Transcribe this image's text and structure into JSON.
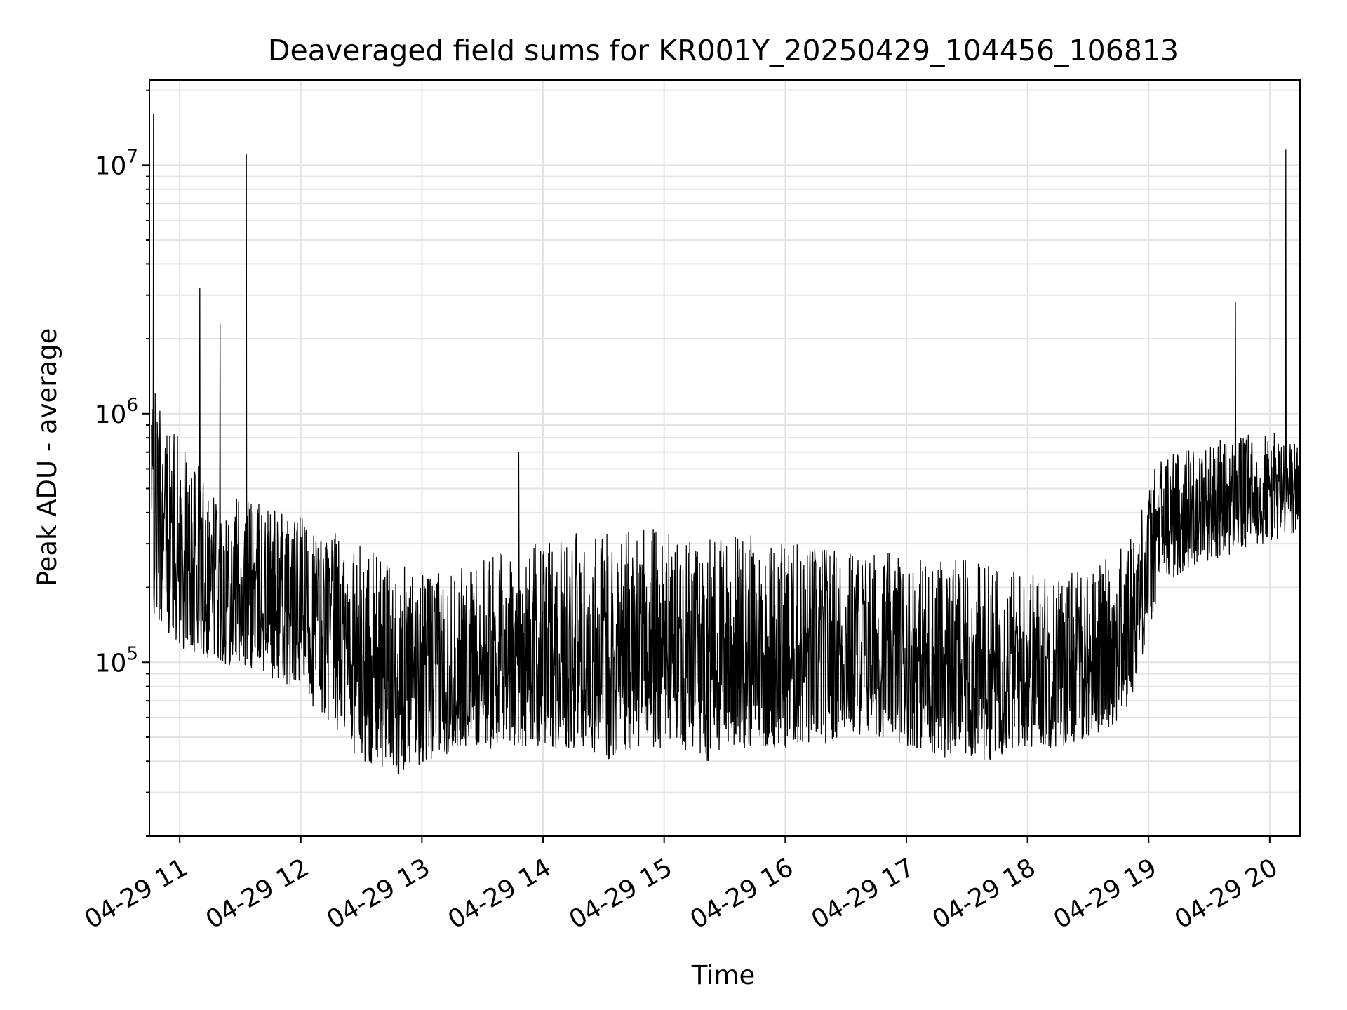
{
  "chart_data": {
    "type": "line",
    "title": "Deaveraged field sums for KR001Y_20250429_104456_106813",
    "xlabel": "Time",
    "ylabel": "Peak ADU - average",
    "x_axis": {
      "kind": "time",
      "range": [
        "2025-04-29 10:45",
        "2025-04-29 20:15"
      ],
      "ticks": [
        "2025-04-29 11:00",
        "2025-04-29 12:00",
        "2025-04-29 13:00",
        "2025-04-29 14:00",
        "2025-04-29 15:00",
        "2025-04-29 16:00",
        "2025-04-29 17:00",
        "2025-04-29 18:00",
        "2025-04-29 19:00",
        "2025-04-29 20:00"
      ],
      "tick_labels": [
        "04-29 11",
        "04-29 12",
        "04-29 13",
        "04-29 14",
        "04-29 15",
        "04-29 16",
        "04-29 17",
        "04-29 18",
        "04-29 19",
        "04-29 20"
      ],
      "tick_label_rotation_deg": 30
    },
    "y_axis": {
      "scale": "log",
      "range": [
        20000,
        22000000
      ],
      "ticks": [
        100000,
        1000000,
        10000000
      ],
      "tick_labels": [
        {
          "base": "10",
          "exp": "5"
        },
        {
          "base": "10",
          "exp": "6"
        },
        {
          "base": "10",
          "exp": "7"
        }
      ]
    },
    "grid": true,
    "line_color": "#000000",
    "series": [
      {
        "x": [
          "2025-04-29 10:46",
          "2025-04-29 10:47",
          "2025-04-29 10:49",
          "2025-04-29 10:50",
          "2025-04-29 10:52",
          "2025-04-29 10:55",
          "2025-04-29 10:58",
          "2025-04-29 11:01",
          "2025-04-29 11:05",
          "2025-04-29 11:10",
          "2025-04-29 11:15",
          "2025-04-29 11:20",
          "2025-04-29 11:23",
          "2025-04-29 11:26",
          "2025-04-29 11:30",
          "2025-04-29 11:33",
          "2025-04-29 11:36",
          "2025-04-29 11:40",
          "2025-04-29 11:45",
          "2025-04-29 11:50",
          "2025-04-29 11:55",
          "2025-04-29 12:00",
          "2025-04-29 12:30",
          "2025-04-29 13:00",
          "2025-04-29 13:30",
          "2025-04-29 13:48",
          "2025-04-29 14:00",
          "2025-04-29 14:30",
          "2025-04-29 15:00",
          "2025-04-29 15:30",
          "2025-04-29 16:00",
          "2025-04-29 16:30",
          "2025-04-29 17:00",
          "2025-04-29 17:30",
          "2025-04-29 18:00",
          "2025-04-29 18:30",
          "2025-04-29 19:00",
          "2025-04-29 19:30",
          "2025-04-29 19:40",
          "2025-04-29 19:43",
          "2025-04-29 19:50",
          "2025-04-29 19:55",
          "2025-04-29 20:05",
          "2025-04-29 20:08",
          "2025-04-29 20:15"
        ],
        "y": [
          900000,
          16000000,
          350000,
          300000,
          280000,
          250000,
          220000,
          210000,
          200000,
          3200000,
          180000,
          2300000,
          120000,
          110000,
          100000,
          11000000,
          110000,
          105000,
          100000,
          110000,
          115000,
          120000,
          120000,
          120000,
          115000,
          700000,
          120000,
          125000,
          125000,
          125000,
          120000,
          118000,
          115000,
          115000,
          115000,
          113000,
          112000,
          110000,
          120000,
          2800000,
          420000,
          460000,
          480000,
          11500000,
          460000
        ],
        "envelope": {
          "lower": [
            150000,
            110000,
            100000,
            90000,
            80000,
            60000,
            40000,
            35000,
            40000,
            45000,
            45000,
            45000,
            45000,
            40000,
            45000,
            45000,
            40000,
            45000,
            45000,
            45000,
            50000,
            50000,
            45000,
            40000,
            40000,
            45000,
            45000,
            50000,
            60000,
            200000,
            250000,
            270000,
            300000,
            320000
          ],
          "upper": [
            1300000,
            700000,
            500000,
            450000,
            400000,
            350000,
            300000,
            250000,
            230000,
            240000,
            280000,
            300000,
            330000,
            340000,
            340000,
            350000,
            340000,
            330000,
            320000,
            300000,
            290000,
            280000,
            270000,
            260000,
            250000,
            240000,
            230000,
            240000,
            300000,
            700000,
            750000,
            800000,
            850000,
            800000
          ]
        }
      }
    ]
  }
}
